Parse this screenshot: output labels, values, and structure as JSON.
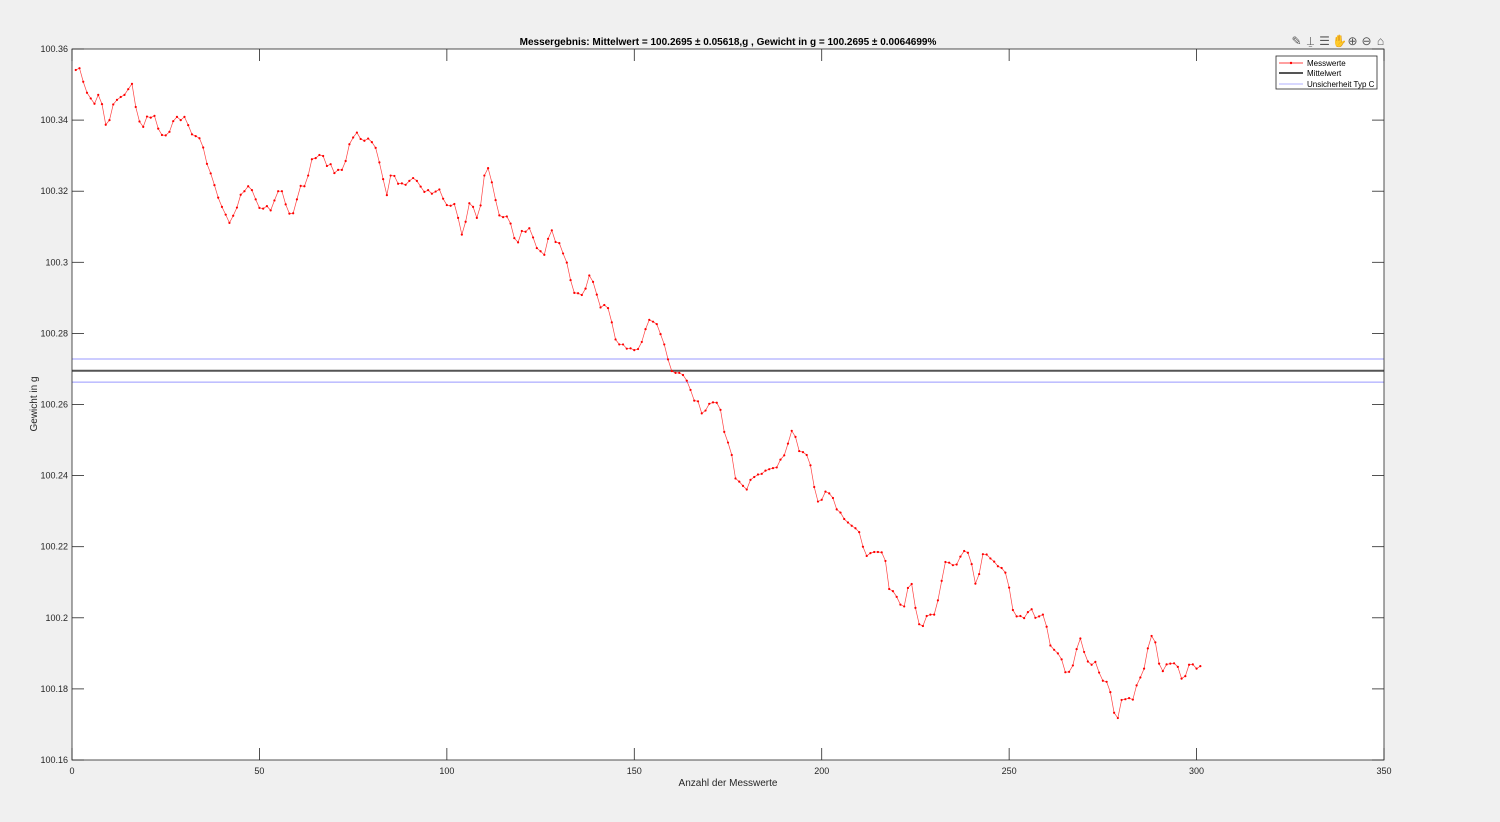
{
  "toolbar": {
    "icons": [
      "brush-icon",
      "data-tip-icon",
      "legend-icon",
      "pan-hand-icon",
      "zoom-in-icon",
      "zoom-out-icon",
      "home-icon"
    ]
  },
  "chart_data": {
    "type": "line",
    "title": "Messergebnis: Mittelwert = 100.2695 ± 0.05618,g , Gewicht in g = 100.2695 ± 0.0064699%",
    "xlabel": "Anzahl der Messwerte",
    "ylabel": "Gewicht in g",
    "xlim": [
      0,
      350
    ],
    "ylim": [
      100.16,
      100.36
    ],
    "xticks": [
      0,
      50,
      100,
      150,
      200,
      250,
      300,
      350
    ],
    "xtick_labels": [
      "0",
      "50",
      "100",
      "150",
      "200",
      "250",
      "300",
      "350"
    ],
    "yticks": [
      100.16,
      100.18,
      100.2,
      100.22,
      100.24,
      100.26,
      100.28,
      100.3,
      100.32,
      100.34,
      100.36
    ],
    "ytick_labels": [
      "100.16",
      "100.18",
      "100.2",
      "100.22",
      "100.24",
      "100.26",
      "100.28",
      "100.3",
      "100.32",
      "100.34",
      "100.36"
    ],
    "grid": false,
    "legend_position": "top-right",
    "series": [
      {
        "name": "Messwerte",
        "color": "#ff0000",
        "marker": "point",
        "y": [
          100.3541,
          100.3546,
          100.3508,
          100.3477,
          100.3461,
          100.3446,
          100.3471,
          100.3445,
          100.3387,
          100.34,
          100.3444,
          100.3457,
          100.3465,
          100.3471,
          100.3487,
          100.3502,
          100.3437,
          100.3396,
          100.3381,
          100.341,
          100.3407,
          100.3412,
          100.3376,
          100.3358,
          100.3357,
          100.3367,
          100.3397,
          100.3409,
          100.34,
          100.3409,
          100.3386,
          100.336,
          100.3355,
          100.3349,
          100.3323,
          100.3277,
          100.325,
          100.3217,
          100.3182,
          100.3156,
          100.3134,
          100.3111,
          100.3131,
          100.3154,
          100.319,
          100.32,
          100.3214,
          100.3203,
          100.3177,
          100.3153,
          100.3151,
          100.3158,
          100.3146,
          100.3174,
          100.32,
          100.32,
          100.3163,
          100.3137,
          100.3138,
          100.3177,
          100.3215,
          100.3214,
          100.3244,
          100.329,
          100.3293,
          100.3302,
          100.3299,
          100.3271,
          100.3276,
          100.3251,
          100.326,
          100.326,
          100.3285,
          100.3332,
          100.3351,
          100.3365,
          100.3347,
          100.3342,
          100.3348,
          100.3338,
          100.3322,
          100.3281,
          100.3234,
          100.3189,
          100.3244,
          100.3243,
          100.3221,
          100.3222,
          100.3218,
          100.3229,
          100.3237,
          100.3229,
          100.3213,
          100.3198,
          100.3203,
          100.3193,
          100.3199,
          100.3205,
          100.3179,
          100.3161,
          100.3159,
          100.3164,
          100.3125,
          100.3078,
          100.3114,
          100.3166,
          100.3156,
          100.3125,
          100.316,
          100.3244,
          100.3265,
          100.3225,
          100.3175,
          100.3132,
          100.3127,
          100.3129,
          100.3109,
          100.3068,
          100.3056,
          100.3088,
          100.3086,
          100.3096,
          100.307,
          100.304,
          100.3031,
          100.3021,
          100.3066,
          100.309,
          100.3057,
          100.3054,
          100.3025,
          100.2999,
          100.295,
          100.2914,
          100.2913,
          100.2908,
          100.2926,
          100.2963,
          100.2945,
          100.2909,
          100.2873,
          100.288,
          100.2871,
          100.2831,
          100.2783,
          100.2769,
          100.2769,
          100.2757,
          100.2758,
          100.2753,
          100.2756,
          100.2776,
          100.2812,
          100.2838,
          100.2833,
          100.2826,
          100.2798,
          100.2769,
          100.2727,
          100.2694,
          100.2689,
          100.2689,
          100.2683,
          100.2667,
          100.2641,
          100.2611,
          100.2609,
          100.2575,
          100.2583,
          100.2602,
          100.2606,
          100.2605,
          100.2585,
          100.2523,
          100.2493,
          100.2458,
          100.2392,
          100.2383,
          100.2371,
          100.2361,
          100.2388,
          100.2396,
          100.2403,
          100.2405,
          100.2414,
          100.2418,
          100.2421,
          100.2423,
          100.2445,
          100.2457,
          100.249,
          100.2526,
          100.2509,
          100.2469,
          100.2466,
          100.2458,
          100.2429,
          100.2368,
          100.2327,
          100.2332,
          100.2355,
          100.235,
          100.2337,
          100.2305,
          100.2296,
          100.2278,
          100.2268,
          100.2259,
          100.2252,
          100.2241,
          100.22,
          100.2174,
          100.2182,
          100.2185,
          100.2185,
          100.2184,
          100.216,
          100.2081,
          100.2075,
          100.2059,
          100.2037,
          100.2032,
          100.2084,
          100.2095,
          100.2028,
          100.1982,
          100.1977,
          100.2005,
          100.2009,
          100.2009,
          100.2049,
          100.2104,
          100.2157,
          100.2155,
          100.2148,
          100.215,
          100.2172,
          100.2188,
          100.2183,
          100.2151,
          100.2096,
          100.2123,
          100.2179,
          100.2178,
          100.2167,
          100.2158,
          100.2145,
          100.214,
          100.2127,
          100.2085,
          100.2022,
          100.2004,
          100.2005,
          100.1999,
          100.2016,
          100.2024,
          100.2,
          100.2004,
          100.2009,
          100.1975,
          100.1922,
          100.191,
          100.19,
          100.1883,
          100.1847,
          100.1848,
          100.1866,
          100.1912,
          100.1942,
          100.1904,
          100.1877,
          100.1868,
          100.1876,
          100.1846,
          100.1823,
          100.182,
          100.1791,
          100.1733,
          100.1718,
          100.1769,
          100.1771,
          100.1774,
          100.177,
          100.181,
          100.1832,
          100.1857,
          100.1914,
          100.1949,
          100.1931,
          100.1871,
          100.185,
          100.1869,
          100.1871,
          100.1872,
          100.1862,
          100.1829,
          100.1836,
          100.1868,
          100.1869,
          100.1857,
          100.1864
        ]
      },
      {
        "name": "Mittelwert",
        "color": "#555555",
        "y_const": 100.2695
      },
      {
        "name": "Unsicherheit Typ C",
        "color": "#9999ff",
        "y_const": [
          100.2728,
          100.2663
        ]
      }
    ]
  }
}
